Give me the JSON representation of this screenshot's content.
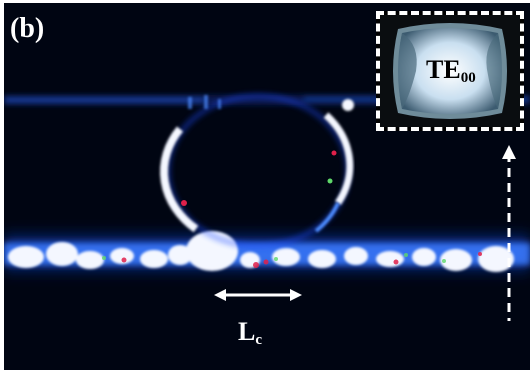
{
  "figure": {
    "panel_label": "(b)",
    "inset": {
      "mode_main": "TE",
      "mode_sub": "00"
    },
    "coupling_length": {
      "main": "L",
      "sub": "c"
    },
    "icons": [
      "double-arrow-icon",
      "dashed-up-arrow-icon"
    ],
    "colors": {
      "background": "#000512",
      "glow_blue": "#1f5cff",
      "hot_white": "#ffffff",
      "hot_red": "#e0204a",
      "hot_green": "#5fd86a"
    }
  }
}
